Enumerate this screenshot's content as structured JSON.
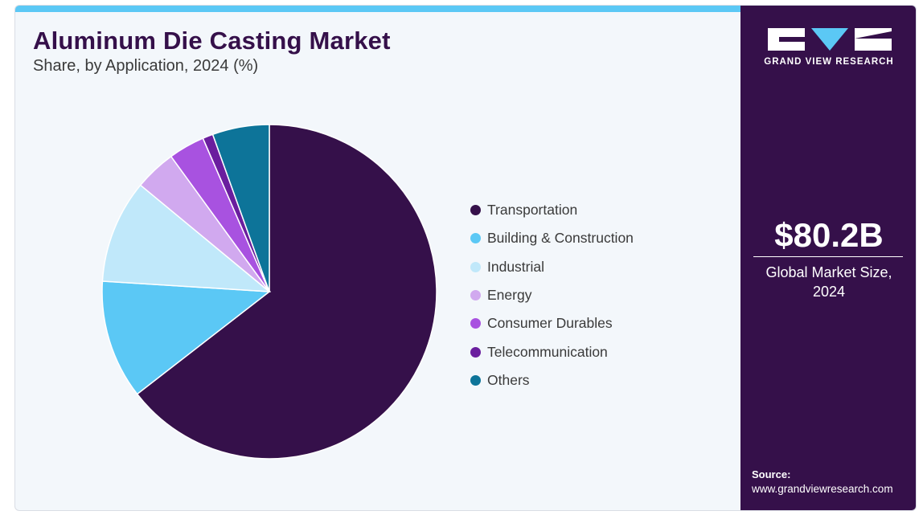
{
  "header": {
    "title": "Aluminum Die Casting Market",
    "subtitle": "Share, by Application, 2024 (%)"
  },
  "chart_data": {
    "type": "pie",
    "title": "Aluminum Die Casting Market",
    "subtitle": "Share, by Application, 2024 (%)",
    "legend_position": "right",
    "categories": [
      "Transportation",
      "Building & Construction",
      "Industrial",
      "Energy",
      "Consumer Durables",
      "Telecommunication",
      "Others"
    ],
    "values": [
      64.5,
      11.5,
      10.0,
      4.0,
      3.5,
      1.0,
      5.5
    ],
    "colors": [
      "#35104a",
      "#5bc8f5",
      "#c0e8fa",
      "#d1a9ef",
      "#a852e0",
      "#6a1e9e",
      "#0d7499"
    ]
  },
  "sidebar": {
    "brand": "GRAND VIEW RESEARCH",
    "market_size": "$80.2B",
    "market_caption_line1": "Global Market Size,",
    "market_caption_line2": "2024",
    "source_label": "Source:",
    "source_url": "www.grandviewresearch.com"
  },
  "icons": [
    "gvr-logo"
  ]
}
